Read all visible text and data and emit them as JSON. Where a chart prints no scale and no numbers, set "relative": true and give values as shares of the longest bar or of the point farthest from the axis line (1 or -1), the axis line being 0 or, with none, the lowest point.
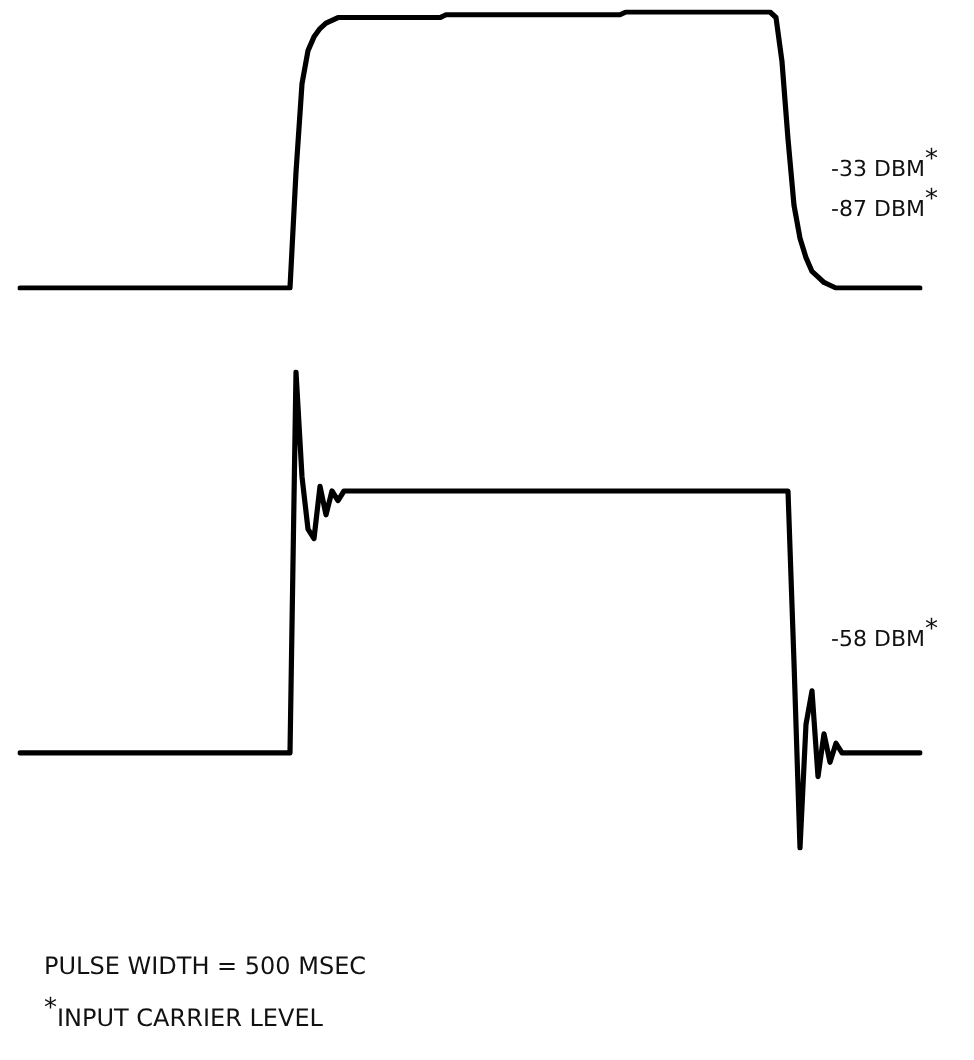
{
  "chart_data": [
    {
      "type": "line",
      "relative": true,
      "categories": [
        null,
        null,
        null,
        null,
        null,
        null,
        null,
        null,
        null,
        null,
        null,
        null,
        null,
        null,
        null,
        null,
        null,
        null,
        null,
        null,
        null,
        null,
        null,
        null,
        null,
        null,
        null,
        null,
        null,
        null,
        null,
        null,
        null,
        null,
        null,
        null,
        null,
        null,
        null,
        null,
        null,
        null,
        null,
        null,
        null,
        null,
        null,
        null,
        null,
        null,
        null,
        null,
        null,
        null,
        null,
        null,
        null,
        null,
        null,
        null,
        null,
        null,
        null,
        null,
        null,
        null,
        null,
        null,
        null,
        null,
        null,
        null,
        null,
        null,
        null,
        null,
        null,
        null,
        null,
        null,
        null,
        null,
        null,
        null,
        null,
        null,
        null,
        null,
        null,
        null,
        null,
        null,
        null,
        null,
        null,
        null,
        null,
        null,
        null,
        null,
        null,
        null,
        null,
        null,
        null,
        null,
        null,
        null,
        null,
        null,
        null,
        null,
        null,
        null,
        null,
        null,
        null,
        null,
        null,
        null,
        null,
        null,
        null,
        null,
        null,
        null,
        null,
        null,
        null,
        null,
        null,
        null,
        null,
        null,
        null,
        null,
        null,
        null,
        null,
        null,
        null,
        null,
        null,
        null,
        null,
        null,
        null,
        null,
        null,
        null,
        null
      ],
      "series": [
        {
          "color": "#000000",
          "values": [
            0,
            0,
            0,
            0,
            0,
            0,
            0,
            0,
            0,
            0,
            0,
            0,
            0,
            0,
            0,
            0,
            0,
            0,
            0,
            0,
            0,
            0,
            0,
            0,
            0,
            0,
            0,
            0,
            0,
            0,
            0,
            0,
            0,
            0,
            0,
            0,
            0,
            0,
            0,
            0,
            0,
            0,
            0,
            0,
            0,
            0,
            0.42,
            0.74,
            0.86,
            0.91,
            0.94,
            0.96,
            0.97,
            0.98,
            0.98,
            0.98,
            0.98,
            0.98,
            0.98,
            0.98,
            0.98,
            0.98,
            0.98,
            0.98,
            0.98,
            0.98,
            0.98,
            0.98,
            0.98,
            0.98,
            0.98,
            0.99,
            0.99,
            0.99,
            0.99,
            0.99,
            0.99,
            0.99,
            0.99,
            0.99,
            0.99,
            0.99,
            0.99,
            0.99,
            0.99,
            0.99,
            0.99,
            0.99,
            0.99,
            0.99,
            0.99,
            0.99,
            0.99,
            0.99,
            0.99,
            0.99,
            0.99,
            0.99,
            0.99,
            0.99,
            0.99,
            1,
            1,
            1,
            1,
            1,
            1,
            1,
            1,
            1,
            1,
            1,
            1,
            1,
            1,
            1,
            1,
            1,
            1,
            1,
            1,
            1,
            1,
            1,
            1,
            1,
            0.98,
            0.82,
            0.54,
            0.3,
            0.18,
            0.11,
            0.06,
            0.04,
            0.02,
            0.01,
            0,
            0,
            0,
            0,
            0,
            0,
            0,
            0,
            0,
            0,
            0,
            0,
            0,
            0,
            0
          ]
        }
      ],
      "annotations": [
        "-33 DBM$^{*}$",
        "-87 DBM$^{*}$"
      ]
    },
    {
      "type": "line",
      "relative": true,
      "categories": [
        null,
        null,
        null,
        null,
        null,
        null,
        null,
        null,
        null,
        null,
        null,
        null,
        null,
        null,
        null,
        null,
        null,
        null,
        null,
        null,
        null,
        null,
        null,
        null,
        null,
        null,
        null,
        null,
        null,
        null,
        null,
        null,
        null,
        null,
        null,
        null,
        null,
        null,
        null,
        null,
        null,
        null,
        null,
        null,
        null,
        null,
        null,
        null,
        null,
        null,
        null,
        null,
        null,
        null,
        null,
        null,
        null,
        null,
        null,
        null,
        null,
        null,
        null,
        null,
        null,
        null,
        null,
        null,
        null,
        null,
        null,
        null,
        null,
        null,
        null,
        null,
        null,
        null,
        null,
        null,
        null,
        null,
        null,
        null,
        null,
        null,
        null,
        null,
        null,
        null,
        null,
        null,
        null,
        null,
        null,
        null,
        null,
        null,
        null,
        null,
        null,
        null,
        null,
        null,
        null,
        null,
        null,
        null,
        null,
        null,
        null,
        null,
        null,
        null,
        null,
        null,
        null,
        null,
        null,
        null,
        null,
        null,
        null,
        null,
        null,
        null,
        null,
        null,
        null,
        null,
        null,
        null,
        null,
        null,
        null,
        null,
        null,
        null,
        null,
        null,
        null,
        null,
        null,
        null,
        null,
        null,
        null,
        null,
        null,
        null,
        null
      ],
      "series": [
        {
          "color": "#000000",
          "values": [
            0.2,
            0.2,
            0.2,
            0.2,
            0.2,
            0.2,
            0.2,
            0.2,
            0.2,
            0.2,
            0.2,
            0.2,
            0.2,
            0.2,
            0.2,
            0.2,
            0.2,
            0.2,
            0.2,
            0.2,
            0.2,
            0.2,
            0.2,
            0.2,
            0.2,
            0.2,
            0.2,
            0.2,
            0.2,
            0.2,
            0.2,
            0.2,
            0.2,
            0.2,
            0.2,
            0.2,
            0.2,
            0.2,
            0.2,
            0.2,
            0.2,
            0.2,
            0.2,
            0.2,
            0.2,
            0.2,
            1,
            0.78,
            0.67,
            0.65,
            0.76,
            0.7,
            0.75,
            0.73,
            0.75,
            0.75,
            0.75,
            0.75,
            0.75,
            0.75,
            0.75,
            0.75,
            0.75,
            0.75,
            0.75,
            0.75,
            0.75,
            0.75,
            0.75,
            0.75,
            0.75,
            0.75,
            0.75,
            0.75,
            0.75,
            0.75,
            0.75,
            0.75,
            0.75,
            0.75,
            0.75,
            0.75,
            0.75,
            0.75,
            0.75,
            0.75,
            0.75,
            0.75,
            0.75,
            0.75,
            0.75,
            0.75,
            0.75,
            0.75,
            0.75,
            0.75,
            0.75,
            0.75,
            0.75,
            0.75,
            0.75,
            0.75,
            0.75,
            0.75,
            0.75,
            0.75,
            0.75,
            0.75,
            0.75,
            0.75,
            0.75,
            0.75,
            0.75,
            0.75,
            0.75,
            0.75,
            0.75,
            0.75,
            0.75,
            0.75,
            0.75,
            0.75,
            0.75,
            0.75,
            0.75,
            0.75,
            0.75,
            0.75,
            0.75,
            0.39,
            0,
            0.26,
            0.33,
            0.15,
            0.24,
            0.18,
            0.22,
            0.2,
            0.2,
            0.2,
            0.2,
            0.2,
            0.2,
            0.2,
            0.2,
            0.2,
            0.2,
            0.2,
            0.2,
            0.2,
            0.2
          ]
        }
      ],
      "annotations": [
        "-58 DBM$^{*}$"
      ]
    },
    {
      "type": "other",
      "annotations": [
        "PULSE WIDTH = 500 MSEC",
        "$^{*}$INPUT CARRIER LEVEL"
      ]
    }
  ]
}
